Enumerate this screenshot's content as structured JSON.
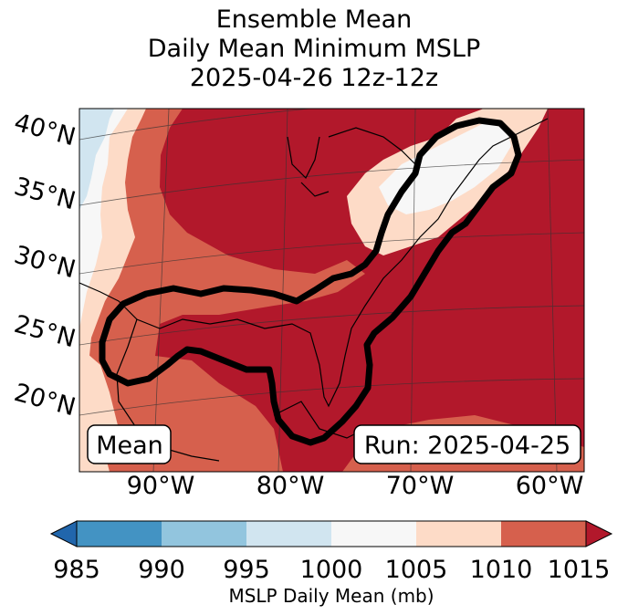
{
  "title": {
    "line1": "Ensemble Mean",
    "line2": "Daily Mean Minimum MSLP",
    "line3": "2025-04-26 12z-12z"
  },
  "map": {
    "lat_labels": [
      "40°N",
      "35°N",
      "30°N",
      "25°N",
      "20°N"
    ],
    "lon_labels": [
      "90°W",
      "80°W",
      "70°W",
      "60°W"
    ],
    "mean_box": "Mean",
    "run_box": "Run: 2025-04-25"
  },
  "colorbar": {
    "ticks": [
      "985",
      "990",
      "995",
      "1000",
      "1005",
      "1010",
      "1015"
    ],
    "label": "MSLP Daily Mean (mb)",
    "colors": [
      "#2166ac",
      "#4393c3",
      "#92c5de",
      "#d1e5f0",
      "#f7f7f7",
      "#fddbc7",
      "#d6604d",
      "#b2182b"
    ]
  },
  "colors": {
    "deep_red": "#b2182b",
    "red": "#d6604d",
    "salmon": "#fddbc7",
    "white": "#f7f7f7",
    "light_blue": "#d1e5f0",
    "contour": "#000000"
  }
}
